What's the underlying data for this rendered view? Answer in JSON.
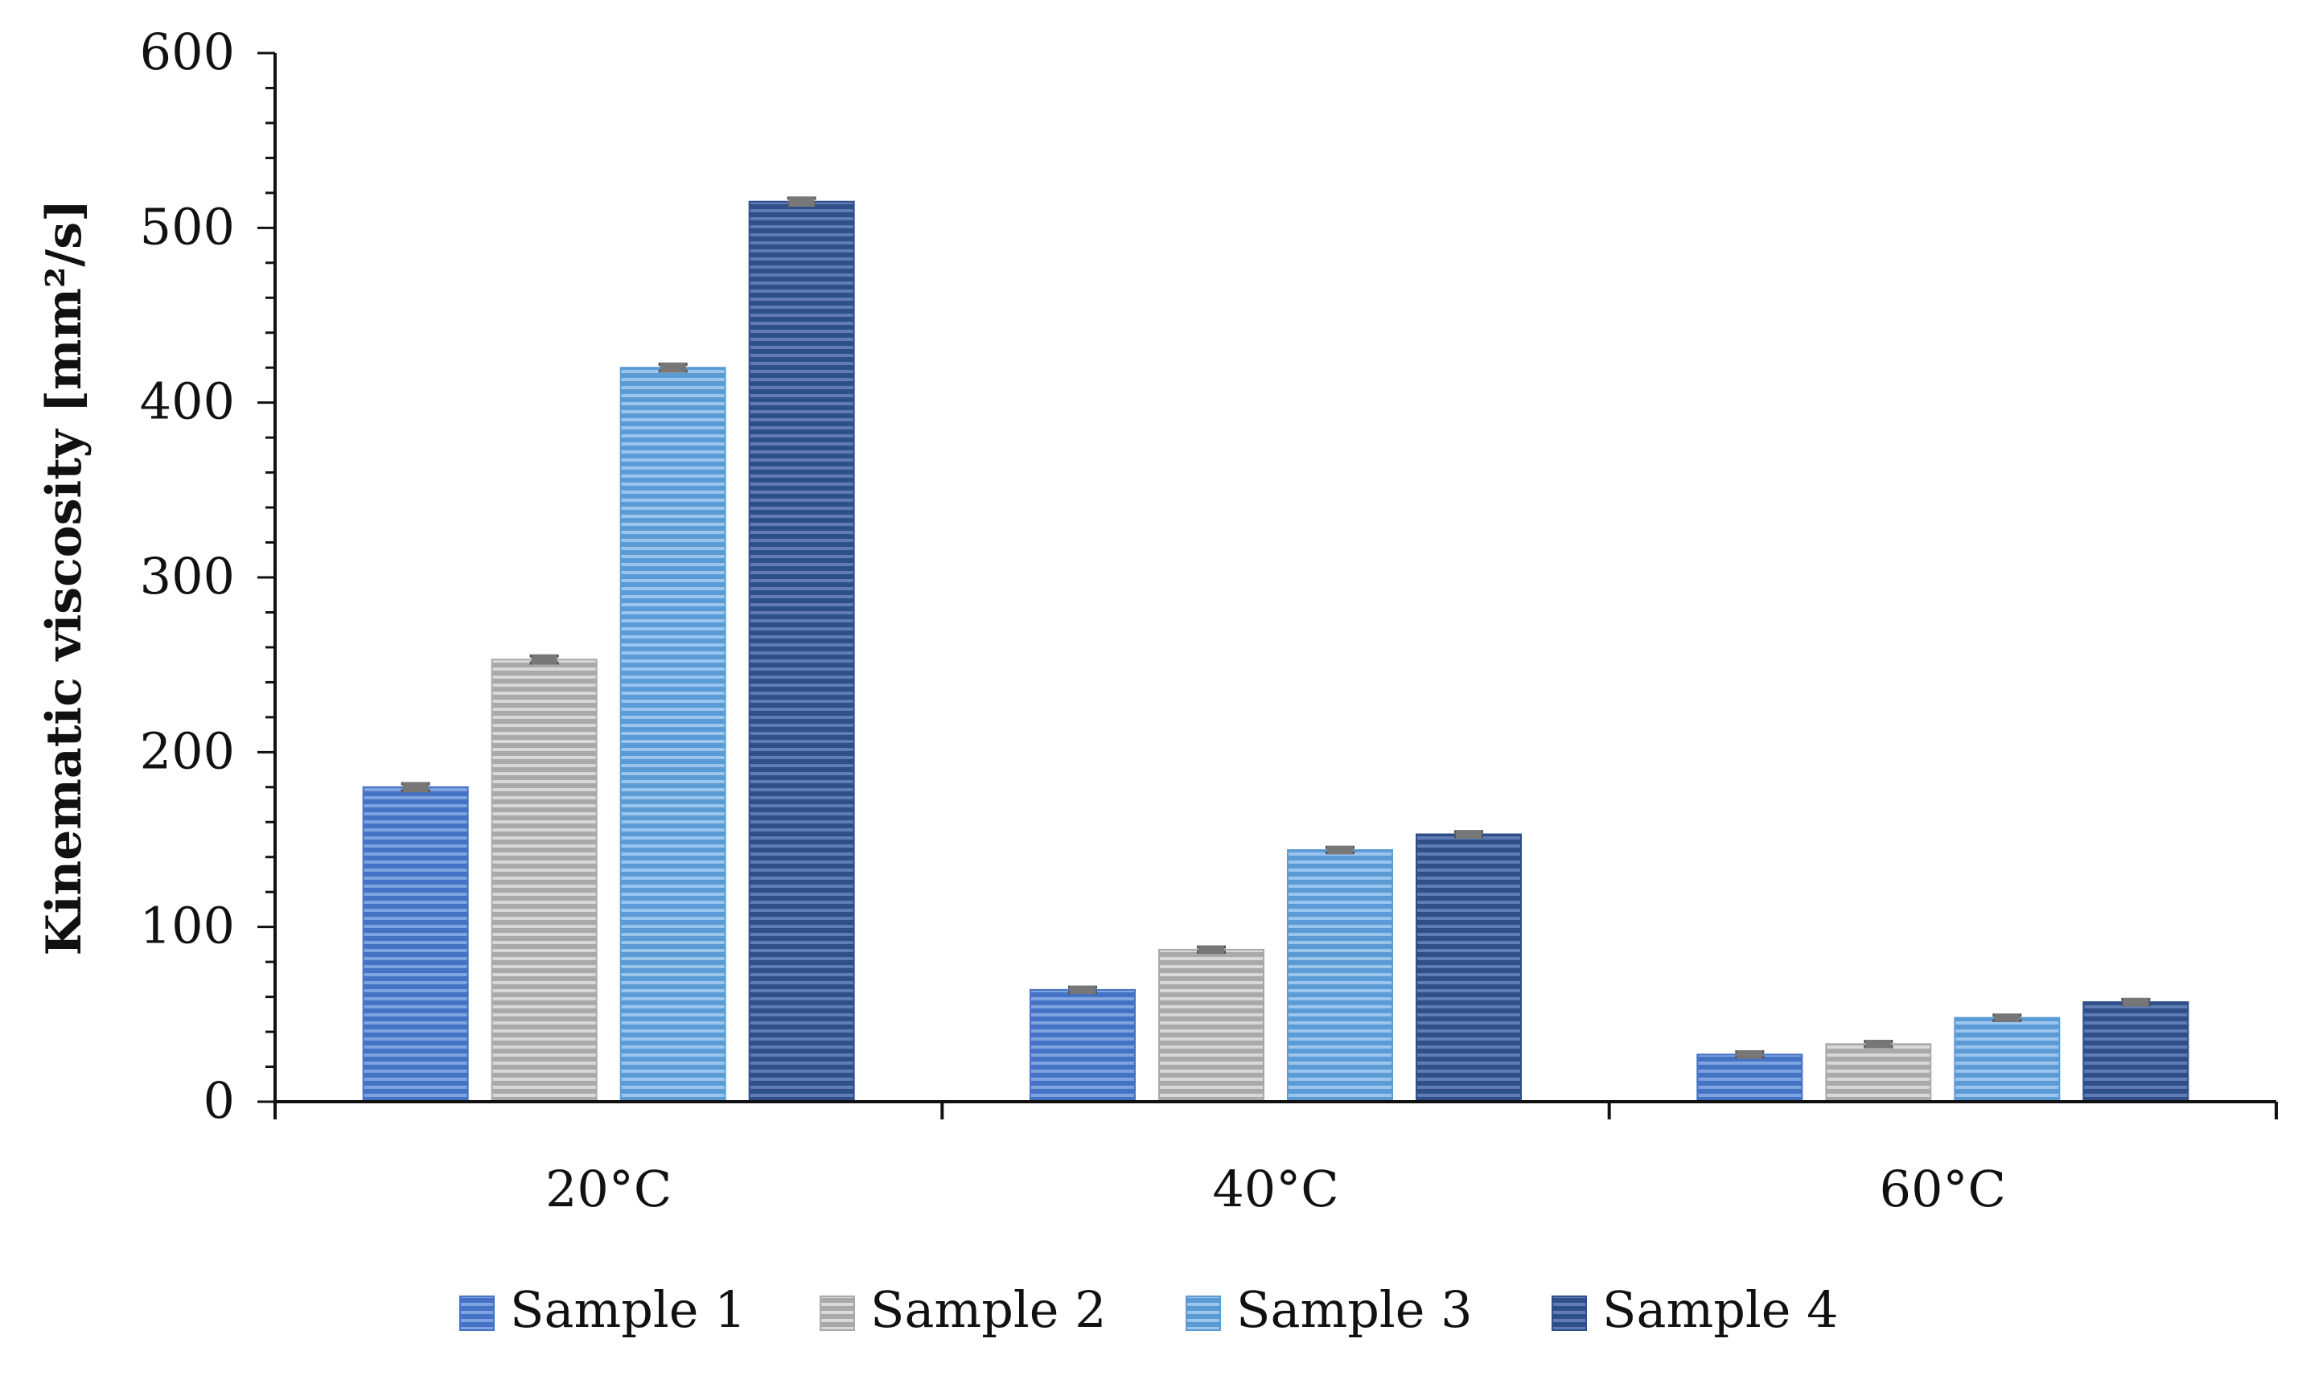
{
  "chart_data": {
    "type": "bar",
    "title": "",
    "xlabel": "",
    "ylabel": "Kinematic viscosity [mm²/s]",
    "categories": [
      "20°C",
      "40°C",
      "60°C"
    ],
    "ylim": [
      0,
      600
    ],
    "yticks": [
      0,
      100,
      200,
      300,
      400,
      500,
      600
    ],
    "grid": false,
    "error_bars": true,
    "legend_position": "bottom",
    "series": [
      {
        "name": "Sample 1",
        "values": [
          180,
          64,
          27
        ],
        "errors": [
          2,
          1.5,
          1.5
        ],
        "color": "#4472C4",
        "stripe": "#7FA3E0"
      },
      {
        "name": "Sample 2",
        "values": [
          253,
          87,
          33
        ],
        "errors": [
          2,
          1.5,
          1.5
        ],
        "color": "#A9A9A9",
        "stripe": "#D8D8D8"
      },
      {
        "name": "Sample 3",
        "values": [
          420,
          144,
          48
        ],
        "errors": [
          2,
          1.5,
          1.5
        ],
        "color": "#5B9BD5",
        "stripe": "#9CC5EE"
      },
      {
        "name": "Sample 4",
        "values": [
          515,
          153,
          57
        ],
        "errors": [
          2,
          1.5,
          1.5
        ],
        "color": "#2F4F8A",
        "stripe": "#5F7DB4"
      }
    ]
  }
}
